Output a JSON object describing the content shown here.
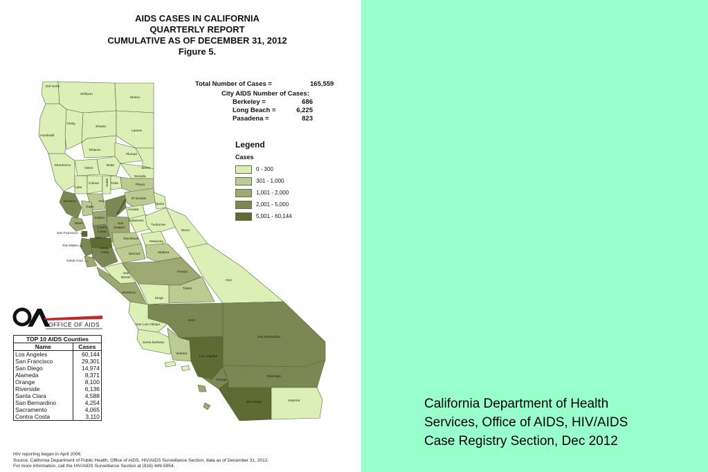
{
  "title": {
    "line1": "AIDS CASES IN CALIFORNIA",
    "line2": "QUARTERLY REPORT",
    "line3": "CUMULATIVE AS OF  DECEMBER 31, 2012",
    "line4": "Figure 5."
  },
  "totals": {
    "total_label": "Total Number of Cases  =",
    "total_value": "165,559",
    "city_heading": "City AIDS Number of Cases:",
    "cities": [
      {
        "name": "Berkeley =",
        "value": "686"
      },
      {
        "name": "Long Beach =",
        "value": "6,225"
      },
      {
        "name": "Pasadena =",
        "value": "823"
      }
    ]
  },
  "legend": {
    "title": "Legend",
    "subtitle": "Cases",
    "classes": [
      {
        "label": "0 - 300",
        "color": "#dcefb6"
      },
      {
        "label": "301 - 1,000",
        "color": "#bccb92"
      },
      {
        "label": "1,001 - 2,000",
        "color": "#9ea872"
      },
      {
        "label": "2,001 - 5,000",
        "color": "#7c8854"
      },
      {
        "label": "5,001 - 60,144",
        "color": "#5e6b33"
      }
    ]
  },
  "counties": {
    "del_norte": "Del Norte",
    "siskiyou": "Siskiyou",
    "modoc": "Modoc",
    "humboldt": "Humboldt",
    "trinity": "Trinity",
    "shasta": "Shasta",
    "lassen": "Lassen",
    "tehama": "Tehama",
    "plumas": "Plumas",
    "mendocino": "Mendocino",
    "glenn": "Glenn",
    "butte": "Butte",
    "sierra": "Sierra",
    "nevada": "Nevada",
    "lake": "Lake",
    "colusa": "Colusa",
    "yuba": "Yuba",
    "sutter": "Sutter",
    "placer": "Placer",
    "sonoma": "Sonoma",
    "yolo": "Yolo",
    "el_dorado": "El Dorado",
    "napa": "Napa",
    "sacramento": "Sacramento",
    "alpine": "Alpine",
    "amador": "Amador",
    "solano": "Solano",
    "marin": "Marin",
    "contra_costa": "Contra Costa",
    "san_joaquin": "San Joaquin",
    "calaveras": "Calaveras",
    "tuolumne": "Tuolumne",
    "mono": "Mono",
    "san_francisco": "San Francisco",
    "alameda": "Alameda",
    "stanislaus": "Stanislaus",
    "san_mateo": "San Mateo",
    "santa_clara": "Santa Clara",
    "mariposa": "Mariposa",
    "santa_cruz": "Santa Cruz",
    "merced": "Merced",
    "madera": "Madera",
    "fresno": "Fresno",
    "san_benito": "San Benito",
    "inyo": "Inyo",
    "tulare": "Tulare",
    "monterey": "Monterey",
    "kings": "Kings",
    "kern": "Kern",
    "san_luis_obispo": "San Luis Obispo",
    "san_bernardino": "San Bernardino",
    "santa_barbara": "Santa Barbara",
    "ventura": "Ventura",
    "los_angeles": "Los Angeles",
    "orange": "Orange",
    "riverside": "Riverside",
    "san_diego": "San Diego",
    "imperial": "Imperial"
  },
  "logo": {
    "text": "OFFICE OF AIDS",
    "mark": "OA"
  },
  "top10": {
    "caption": "TOP 10 AIDS Counties",
    "col_name": "Name",
    "col_cases": "Cases",
    "rows": [
      {
        "name": "Los Angeles",
        "cases": "60,144"
      },
      {
        "name": "San Francisco",
        "cases": "29,301"
      },
      {
        "name": "San Diego",
        "cases": "14,974"
      },
      {
        "name": "Alameda",
        "cases": "8,371"
      },
      {
        "name": "Orange",
        "cases": "8,100"
      },
      {
        "name": "Riverside",
        "cases": "6,136"
      },
      {
        "name": "Santa Clara",
        "cases": "4,588"
      },
      {
        "name": "San Bernardino",
        "cases": "4,254"
      },
      {
        "name": "Sacramento",
        "cases": "4,065"
      },
      {
        "name": "Contra Costa",
        "cases": "3,110"
      }
    ]
  },
  "footnotes": {
    "line1": "HIV reporting began in April 2006.",
    "line2": "Source:  California Department of Public Health, Office of AIDS, HIV/AIDS Surveillance Section, data as of December 31, 2012.",
    "line3": "For more information, call the HIV/AIDS Surveillance  Section at (916)  449-5954."
  },
  "caption": {
    "line1": "California Department of Health",
    "line2": "Services, Office of AIDS,  HIV/AIDS",
    "line3": "Case Registry Section, Dec 2012"
  }
}
